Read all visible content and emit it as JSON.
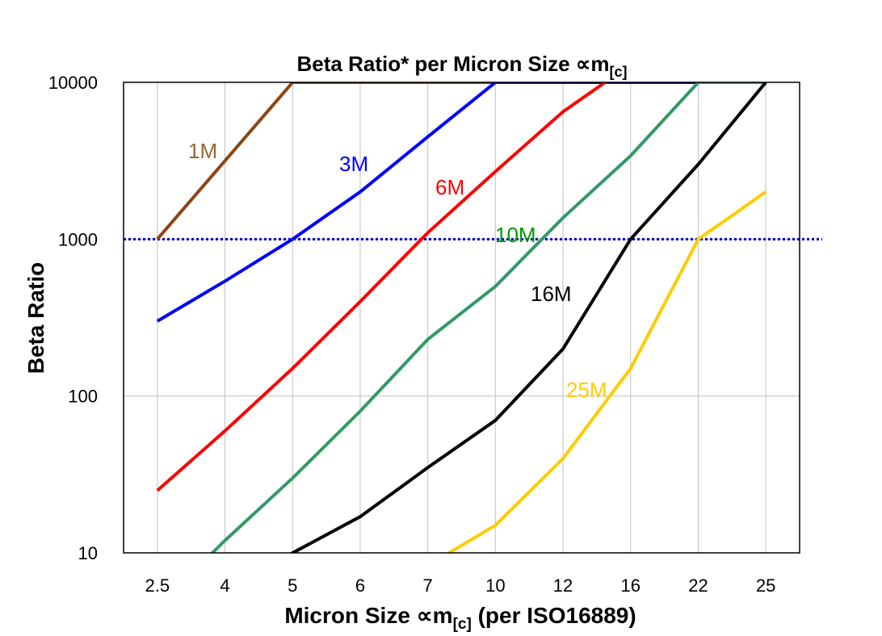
{
  "chart_data": {
    "type": "line",
    "title": "Beta Ratio* per Micron Size ∝m",
    "title_sub": "[c]",
    "xlabel": "Micron Size ∝m",
    "xlabel_sub": "[c]",
    "xlabel_suffix": " (per ISO16889)",
    "ylabel": "Beta Ratio",
    "yscale": "log",
    "ylim": [
      10,
      10000
    ],
    "yticks": [
      "10",
      "100",
      "1000",
      "10000"
    ],
    "grid": true,
    "legend": "none",
    "categories": [
      "2.5",
      "4",
      "5",
      "6",
      "7",
      "10",
      "12",
      "16",
      "22",
      "25"
    ],
    "reference_line": {
      "y": 1000,
      "style": "dotted",
      "color": "#0000CC"
    },
    "series": [
      {
        "name": "1M",
        "color": "#8B4513",
        "label_color": "#996633",
        "values": [
          1000,
          3162,
          10000,
          10000,
          10000,
          10000,
          null,
          null,
          null,
          null
        ]
      },
      {
        "name": "3M",
        "color": "#0000FF",
        "label_color": "#0000FF",
        "values": [
          300,
          540,
          1000,
          2000,
          4500,
          10000,
          10000,
          10000,
          10000,
          null
        ]
      },
      {
        "name": "6M",
        "color": "#FF0000",
        "label_color": "#FF0000",
        "values": [
          25,
          60,
          150,
          400,
          1100,
          2700,
          6500,
          13000,
          null,
          null
        ]
      },
      {
        "name": "10M",
        "color": "#339966",
        "label_color": "#009900",
        "values": [
          4.5,
          12,
          30,
          80,
          230,
          500,
          1370,
          3400,
          10000,
          10000
        ]
      },
      {
        "name": "16M",
        "color": "#000000",
        "label_color": "#000000",
        "values": [
          null,
          5,
          10,
          17,
          35,
          70,
          200,
          1000,
          3000,
          10000
        ]
      },
      {
        "name": "25M",
        "color": "#FFCC00",
        "label_color": "#FFCC00",
        "values": [
          null,
          null,
          null,
          null,
          8.3,
          15,
          40,
          150,
          1000,
          2000
        ]
      }
    ]
  }
}
